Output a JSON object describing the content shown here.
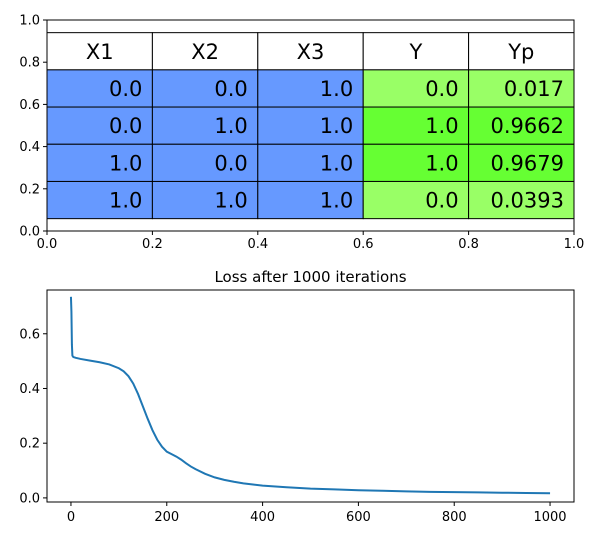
{
  "colors": {
    "header_bg": "#ffffff",
    "input_col_bg": "#6699ff",
    "target_light": "#99ff66",
    "target_bright": "#66ff33",
    "line": "#1f77b4",
    "grid_border": "#000000"
  },
  "chart_data": [
    {
      "type": "table",
      "columns": [
        "X1",
        "X2",
        "X3",
        "Y",
        "Yp"
      ],
      "rows": [
        [
          "0.0",
          "0.0",
          "1.0",
          "0.0",
          "0.017"
        ],
        [
          "0.0",
          "1.0",
          "1.0",
          "1.0",
          "0.9662"
        ],
        [
          "1.0",
          "0.0",
          "1.0",
          "1.0",
          "0.9679"
        ],
        [
          "1.0",
          "1.0",
          "1.0",
          "0.0",
          "0.0393"
        ]
      ],
      "xlim": [
        0.0,
        1.0
      ],
      "ylim": [
        0.0,
        1.0
      ],
      "x_ticks": [
        "0.0",
        "0.2",
        "0.4",
        "0.6",
        "0.8",
        "1.0"
      ],
      "y_ticks": [
        "0.0",
        "0.2",
        "0.4",
        "0.6",
        "0.8",
        "1.0"
      ]
    },
    {
      "type": "line",
      "title": "Loss after 1000 iterations",
      "xlim": [
        -50,
        1050
      ],
      "ylim": [
        -0.015,
        0.76
      ],
      "x_ticks": [
        0,
        200,
        400,
        600,
        800,
        1000
      ],
      "y_ticks": [
        0.0,
        0.2,
        0.4,
        0.6
      ],
      "series": [
        {
          "x": [
            0,
            1,
            2,
            3,
            5,
            10,
            20,
            40,
            60,
            80,
            100,
            110,
            120,
            130,
            140,
            150,
            160,
            170,
            180,
            190,
            200,
            210,
            220,
            230,
            240,
            250,
            260,
            280,
            300,
            320,
            340,
            360,
            380,
            400,
            450,
            500,
            550,
            600,
            650,
            700,
            750,
            800,
            850,
            900,
            950,
            1000
          ],
          "y": [
            0.735,
            0.68,
            0.56,
            0.52,
            0.515,
            0.512,
            0.508,
            0.502,
            0.496,
            0.488,
            0.474,
            0.463,
            0.445,
            0.418,
            0.38,
            0.335,
            0.29,
            0.248,
            0.213,
            0.187,
            0.169,
            0.16,
            0.151,
            0.14,
            0.127,
            0.115,
            0.105,
            0.088,
            0.075,
            0.066,
            0.059,
            0.053,
            0.049,
            0.045,
            0.039,
            0.034,
            0.031,
            0.028,
            0.026,
            0.024,
            0.022,
            0.021,
            0.02,
            0.019,
            0.018,
            0.017
          ]
        }
      ]
    }
  ]
}
